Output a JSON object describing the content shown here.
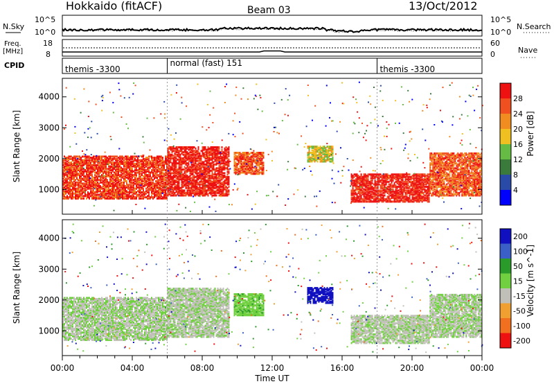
{
  "header": {
    "station": "Hokkaido (fitACF)",
    "beam": "Beam 03",
    "date": "13/Oct/2012"
  },
  "noise_panel": {
    "left_label": "N.Sky",
    "right_label": "N.Search",
    "ticks_left": [
      "10^5",
      "10^0"
    ],
    "ticks_right": [
      "10^5",
      "10^0"
    ]
  },
  "freq_panel": {
    "left_label_line1": "Freq.",
    "left_label_line2": "[MHz]",
    "right_label": "Nave",
    "ticks_left": [
      "18",
      "8"
    ],
    "ticks_right": [
      "60",
      "0"
    ]
  },
  "cpid_panel": {
    "label": "CPID",
    "segments": [
      {
        "start_hour": 0,
        "end_hour": 6,
        "text": "themis -3300"
      },
      {
        "start_hour": 6,
        "end_hour": 18,
        "text": "normal (fast) 151"
      },
      {
        "start_hour": 18,
        "end_hour": 24,
        "text": "themis -3300"
      }
    ]
  },
  "power_panel": {
    "ylabel": "Slant Range [km]",
    "yticks": [
      "4000",
      "3000",
      "2000",
      "1000"
    ],
    "colorbar_label": "Power [dB]",
    "colorbar_ticks": [
      "28",
      "24",
      "20",
      "16",
      "12",
      "8",
      "4"
    ],
    "colors": [
      "#0000ff",
      "#2a4aa8",
      "#3a7a3a",
      "#66bb44",
      "#f0c020",
      "#f08c20",
      "#f05020",
      "#ee1111"
    ]
  },
  "velocity_panel": {
    "ylabel": "Slant Range [km]",
    "yticks": [
      "4000",
      "3000",
      "2000",
      "1000"
    ],
    "colorbar_label": "Velocity [m s^-1]",
    "colorbar_ticks": [
      "200",
      "100",
      "50",
      "15",
      "-15",
      "-50",
      "-100",
      "-200"
    ],
    "colors": [
      "#1010c0",
      "#3a60c8",
      "#2a9a2a",
      "#70d040",
      "#c0c0b8",
      "#f0a030",
      "#f07020",
      "#ee1111"
    ]
  },
  "xaxis": {
    "label": "Time UT",
    "ticks": [
      "00:00",
      "04:00",
      "08:00",
      "12:00",
      "16:00",
      "20:00",
      "00:00"
    ]
  },
  "chart_data": {
    "type": "heatmap",
    "title": "Hokkaido (fitACF) Beam 03 13/Oct/2012",
    "xlabel": "Time UT",
    "ylabel": "Slant Range [km]",
    "xlim_hours": [
      0,
      24
    ],
    "ylim_km": [
      200,
      4600
    ],
    "power_clim_db": [
      0,
      30
    ],
    "velocity_clim": [
      -200,
      200
    ],
    "dominant_echo_bands": [
      {
        "start_hour": 0,
        "end_hour": 6,
        "range_km": [
          700,
          2100
        ],
        "power_db": 26,
        "velocity": -5
      },
      {
        "start_hour": 6,
        "end_hour": 9.5,
        "range_km": [
          800,
          2400
        ],
        "power_db": 28,
        "velocity": -10
      },
      {
        "start_hour": 9.8,
        "end_hour": 11.5,
        "range_km": [
          1500,
          2200
        ],
        "power_db": 24,
        "velocity": 30
      },
      {
        "start_hour": 14,
        "end_hour": 15.5,
        "range_km": [
          1900,
          2400
        ],
        "power_db": 16,
        "velocity": 200
      },
      {
        "start_hour": 16.5,
        "end_hour": 21,
        "range_km": [
          600,
          1500
        ],
        "power_db": 28,
        "velocity": -10
      },
      {
        "start_hour": 21,
        "end_hour": 24,
        "range_km": [
          800,
          2200
        ],
        "power_db": 24,
        "velocity": -5
      }
    ]
  }
}
